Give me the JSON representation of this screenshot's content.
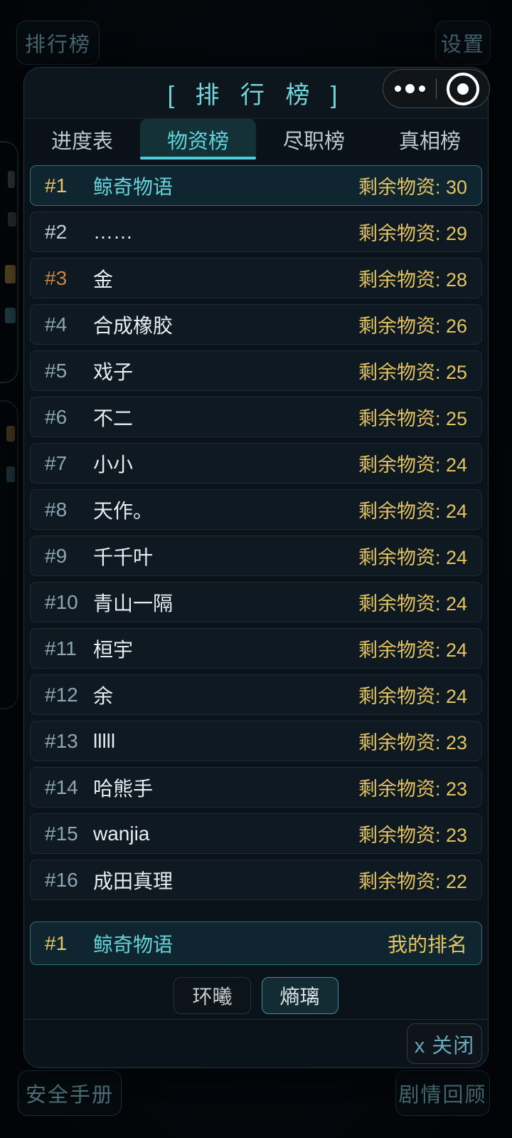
{
  "page": {
    "top_bar": {
      "ranking_button": "排行榜",
      "settings_button": "设置"
    },
    "bottom_bar": {
      "manual_button": "安全手册",
      "review_button": "剧情回顾"
    }
  },
  "modal": {
    "title": "[ 排 行 榜 ]",
    "capsule": {
      "more_icon": "more-dots-icon",
      "record_icon": "record-circle-icon"
    },
    "tabs": [
      {
        "id": "progress",
        "label": "进度表",
        "active": false
      },
      {
        "id": "supplies",
        "label": "物资榜",
        "active": true
      },
      {
        "id": "duty",
        "label": "尽职榜",
        "active": false
      },
      {
        "id": "truth",
        "label": "真相榜",
        "active": false
      }
    ],
    "rows": [
      {
        "rank": "#1",
        "name": "鲸奇物语",
        "value": "剩余物资: 30",
        "tier": "gold",
        "highlighted": true
      },
      {
        "rank": "#2",
        "name": "……",
        "value": "剩余物资: 29",
        "tier": "silver",
        "highlighted": false
      },
      {
        "rank": "#3",
        "name": "金",
        "value": "剩余物资: 28",
        "tier": "bronze",
        "highlighted": false
      },
      {
        "rank": "#4",
        "name": "合成橡胶",
        "value": "剩余物资: 26",
        "tier": "default",
        "highlighted": false
      },
      {
        "rank": "#5",
        "name": "戏子",
        "value": "剩余物资: 25",
        "tier": "default",
        "highlighted": false
      },
      {
        "rank": "#6",
        "name": "不二",
        "value": "剩余物资: 25",
        "tier": "default",
        "highlighted": false
      },
      {
        "rank": "#7",
        "name": "小小",
        "value": "剩余物资: 24",
        "tier": "default",
        "highlighted": false
      },
      {
        "rank": "#8",
        "name": "天作。",
        "value": "剩余物资: 24",
        "tier": "default",
        "highlighted": false
      },
      {
        "rank": "#9",
        "name": "千千叶",
        "value": "剩余物资: 24",
        "tier": "default",
        "highlighted": false
      },
      {
        "rank": "#10",
        "name": "青山一隔",
        "value": "剩余物资: 24",
        "tier": "default",
        "highlighted": false
      },
      {
        "rank": "#11",
        "name": "桓宇",
        "value": "剩余物资: 24",
        "tier": "default",
        "highlighted": false
      },
      {
        "rank": "#12",
        "name": "余",
        "value": "剩余物资: 24",
        "tier": "default",
        "highlighted": false
      },
      {
        "rank": "#13",
        "name": "lllll",
        "value": "剩余物资: 23",
        "tier": "default",
        "highlighted": false
      },
      {
        "rank": "#14",
        "name": "哈熊手",
        "value": "剩余物资: 23",
        "tier": "default",
        "highlighted": false
      },
      {
        "rank": "#15",
        "name": "wanjia",
        "value": "剩余物资: 23",
        "tier": "default",
        "highlighted": false
      },
      {
        "rank": "#16",
        "name": "成田真理",
        "value": "剩余物资: 22",
        "tier": "default",
        "highlighted": false
      }
    ],
    "my_rank": {
      "rank": "#1",
      "name": "鲸奇物语",
      "label": "我的排名"
    },
    "faction_toggles": [
      {
        "id": "huanxi",
        "label": "环曦",
        "active": false
      },
      {
        "id": "shangli",
        "label": "熵璃",
        "active": true
      }
    ],
    "close_button": "x 关闭"
  },
  "colors": {
    "accent_teal": "#49d1d7",
    "gold": "#e8c561",
    "silver": "#c6cfd8",
    "bronze": "#cc8340",
    "rank_default": "#8ea6b4",
    "value_gold": "#e3c362",
    "modal_bg": "#0a121a",
    "row_bg": "#0e1922",
    "highlight_border": "#2f7078"
  }
}
